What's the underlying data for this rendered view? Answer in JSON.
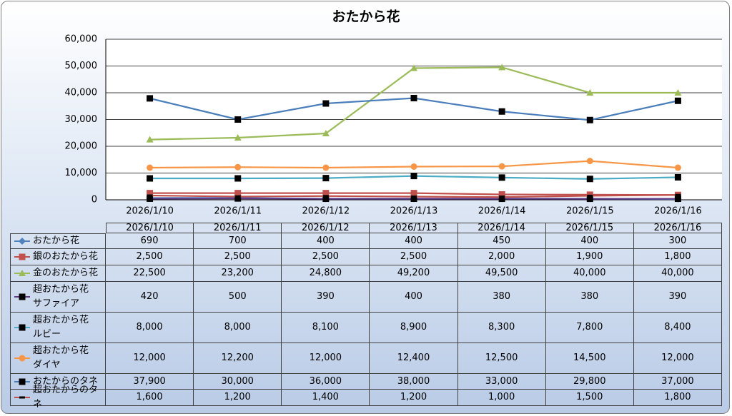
{
  "chart_data": {
    "type": "line",
    "title": "おたから花",
    "categories": [
      "2026/1/10",
      "2026/1/11",
      "2026/1/12",
      "2026/1/13",
      "2026/1/14",
      "2026/1/15",
      "2026/1/16"
    ],
    "ylim": [
      0,
      60000
    ],
    "yticks": [
      {
        "value": 0,
        "label": "0"
      },
      {
        "value": 10000,
        "label": "10,000"
      },
      {
        "value": 20000,
        "label": "20,000"
      },
      {
        "value": 30000,
        "label": "30,000"
      },
      {
        "value": 40000,
        "label": "40,000"
      },
      {
        "value": 50000,
        "label": "50,000"
      },
      {
        "value": 60000,
        "label": "60,000"
      }
    ],
    "grid": true,
    "series": [
      {
        "name": "おたから花",
        "color": "#4f81bd",
        "marker": "diamond",
        "marker_color": "#4f81bd",
        "values": [
          690,
          700,
          400,
          400,
          450,
          400,
          300
        ],
        "value_labels": [
          "690",
          "700",
          "400",
          "400",
          "450",
          "400",
          "300"
        ]
      },
      {
        "name": "銀のおたから花",
        "color": "#c0504d",
        "marker": "square",
        "marker_color": "#c0504d",
        "values": [
          2500,
          2500,
          2500,
          2500,
          2000,
          1900,
          1800
        ],
        "value_labels": [
          "2,500",
          "2,500",
          "2,500",
          "2,500",
          "2,000",
          "1,900",
          "1,800"
        ]
      },
      {
        "name": "金のおたから花",
        "color": "#9bbb59",
        "marker": "triangle",
        "marker_color": "#9bbb59",
        "values": [
          22500,
          23200,
          24800,
          49200,
          49500,
          40000,
          40000
        ],
        "value_labels": [
          "22,500",
          "23,200",
          "24,800",
          "49,200",
          "49,500",
          "40,000",
          "40,000"
        ]
      },
      {
        "name": "超おたから花\nサファイア",
        "color": "#5f3a86",
        "marker": "square",
        "marker_color": "#000000",
        "values": [
          420,
          500,
          390,
          400,
          380,
          380,
          390
        ],
        "value_labels": [
          "420",
          "500",
          "390",
          "400",
          "380",
          "380",
          "390"
        ]
      },
      {
        "name": "超おたから花\nルビー",
        "color": "#4bacc6",
        "marker": "square",
        "marker_color": "#000000",
        "values": [
          8000,
          8000,
          8100,
          8900,
          8300,
          7800,
          8400
        ],
        "value_labels": [
          "8,000",
          "8,000",
          "8,100",
          "8,900",
          "8,300",
          "7,800",
          "8,400"
        ]
      },
      {
        "name": "超おたから花\nダイヤ",
        "color": "#f79646",
        "marker": "circle",
        "marker_color": "#f79646",
        "values": [
          12000,
          12200,
          12000,
          12400,
          12500,
          14500,
          12000
        ],
        "value_labels": [
          "12,000",
          "12,200",
          "12,000",
          "12,400",
          "12,500",
          "14,500",
          "12,000"
        ]
      },
      {
        "name": "おたからのタネ",
        "color": "#4a7ebb",
        "marker": "square",
        "marker_color": "#000000",
        "values": [
          37900,
          30000,
          36000,
          38000,
          33000,
          29800,
          37000
        ],
        "value_labels": [
          "37,900",
          "30,000",
          "36,000",
          "38,000",
          "33,000",
          "29,800",
          "37,000"
        ]
      },
      {
        "name": "超おたからのタネ",
        "color": "#c0504d",
        "marker": "dash",
        "marker_color": "#000000",
        "values": [
          1600,
          1200,
          1400,
          1200,
          1000,
          1500,
          1800
        ],
        "value_labels": [
          "1,600",
          "1,200",
          "1,400",
          "1,200",
          "1,000",
          "1,500",
          "1,800"
        ]
      }
    ]
  }
}
